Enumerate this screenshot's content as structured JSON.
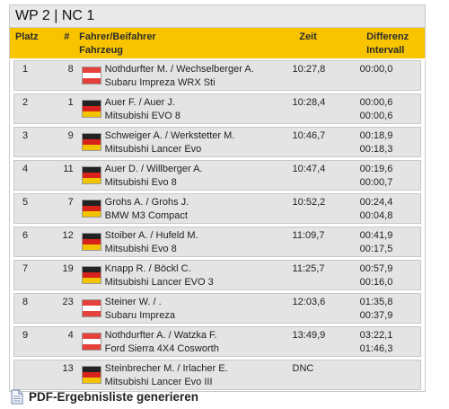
{
  "title": "WP 2 | NC 1",
  "columns": {
    "platz": "Platz",
    "nr": "#",
    "fahrer": "Fahrer/Beifahrer",
    "fahrzeug": "Fahrzeug",
    "zeit": "Zeit",
    "differenz": "Differenz",
    "intervall": "Intervall"
  },
  "rows": [
    {
      "platz": "1",
      "nr": "8",
      "flag": "at-flag-icon",
      "crew": "Nothdurfter M. / Wechselberger A.",
      "car": "Subaru Impreza WRX Sti",
      "zeit": "10:27,8",
      "diff": "00:00,0",
      "interval": ""
    },
    {
      "platz": "2",
      "nr": "1",
      "flag": "de-flag-icon",
      "crew": "Auer F. / Auer J.",
      "car": "Mitsubishi EVO 8",
      "zeit": "10:28,4",
      "diff": "00:00,6",
      "interval": "00:00,6"
    },
    {
      "platz": "3",
      "nr": "9",
      "flag": "de-flag-icon",
      "crew": "Schweiger A. / Werkstetter M.",
      "car": "Mitsubishi Lancer Evo",
      "zeit": "10:46,7",
      "diff": "00:18,9",
      "interval": "00:18,3"
    },
    {
      "platz": "4",
      "nr": "11",
      "flag": "de-flag-icon",
      "crew": "Auer D. / Willberger A.",
      "car": "Mitsubishi Evo 8",
      "zeit": "10:47,4",
      "diff": "00:19,6",
      "interval": "00:00,7"
    },
    {
      "platz": "5",
      "nr": "7",
      "flag": "de-flag-icon",
      "crew": "Grohs A. / Grohs J.",
      "car": "BMW M3 Compact",
      "zeit": "10:52,2",
      "diff": "00:24,4",
      "interval": "00:04,8"
    },
    {
      "platz": "6",
      "nr": "12",
      "flag": "de-flag-icon",
      "crew": "Stoiber A. / Hufeld M.",
      "car": "Mitsubishi Evo 8",
      "zeit": "11:09,7",
      "diff": "00:41,9",
      "interval": "00:17,5"
    },
    {
      "platz": "7",
      "nr": "19",
      "flag": "de-flag-icon",
      "crew": "Knapp R. / Böckl C.",
      "car": "Mitsubishi Lancer EVO 3",
      "zeit": "11:25,7",
      "diff": "00:57,9",
      "interval": "00:16,0"
    },
    {
      "platz": "8",
      "nr": "23",
      "flag": "at-flag-icon",
      "crew": "Steiner W. / .",
      "car": "Subaru Impreza",
      "zeit": "12:03,6",
      "diff": "01:35,8",
      "interval": "00:37,9"
    },
    {
      "platz": "9",
      "nr": "4",
      "flag": "at-flag-icon",
      "crew": "Nothdurfter A. / Watzka F.",
      "car": "Ford Sierra 4X4 Cosworth",
      "zeit": "13:49,9",
      "diff": "03:22,1",
      "interval": "01:46,3"
    },
    {
      "platz": "",
      "nr": "13",
      "flag": "de-flag-icon",
      "crew": "Steinbrecher M. / Irlacher E.",
      "car": "Mitsubishi Lancer Evo III",
      "zeit": "DNC",
      "diff": "",
      "interval": ""
    }
  ],
  "pdf_link": {
    "label": "PDF-Ergebnisliste generieren",
    "icon": "document-icon"
  }
}
